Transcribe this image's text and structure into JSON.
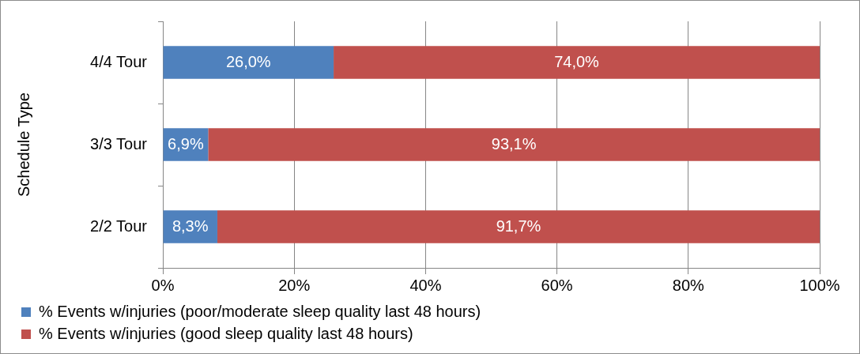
{
  "chart_data": {
    "type": "bar",
    "orientation": "horizontal",
    "stacked": true,
    "ylabel": "Schedule Type",
    "categories": [
      "4/4 Tour",
      "3/3 Tour",
      "2/2 Tour"
    ],
    "series": [
      {
        "name": "% Events w/injuries (poor/moderate sleep quality last 48 hours)",
        "color": "#4f81bd",
        "values": [
          26.0,
          6.9,
          8.3
        ],
        "value_labels": [
          "26,0%",
          "6,9%",
          "8,3%"
        ]
      },
      {
        "name": "% Events w/injuries (good sleep quality last 48 hours)",
        "color": "#c0504d",
        "values": [
          74.0,
          93.1,
          91.7
        ],
        "value_labels": [
          "74,0%",
          "93,1%",
          "91,7%"
        ]
      }
    ],
    "xlim": [
      0,
      100
    ],
    "xticks": [
      {
        "value": 0,
        "label": "0%"
      },
      {
        "value": 20,
        "label": "20%"
      },
      {
        "value": 40,
        "label": "40%"
      },
      {
        "value": 60,
        "label": "60%"
      },
      {
        "value": 80,
        "label": "80%"
      },
      {
        "value": 100,
        "label": "100%"
      }
    ],
    "grid": "x",
    "legend": "bottom"
  }
}
